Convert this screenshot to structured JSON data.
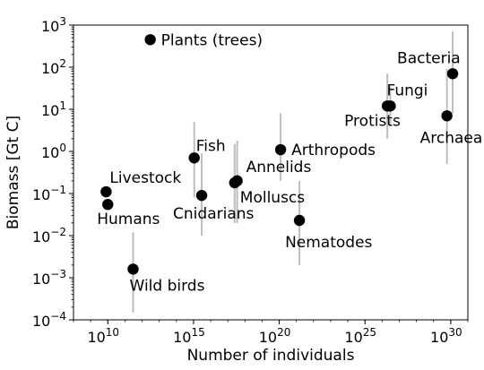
{
  "chart_data": {
    "type": "scatter",
    "title": "",
    "xlabel": "Number of individuals",
    "ylabel": "Biomass [Gt C]",
    "x_scale": "log",
    "y_scale": "log",
    "xlim": [
      100000000.0,
      1e+31
    ],
    "ylim": [
      0.0001,
      1000.0
    ],
    "grid": false,
    "x_ticks": [
      {
        "value": 10000000000.0,
        "base": "10",
        "exp": "10"
      },
      {
        "value": 1000000000000000.0,
        "base": "10",
        "exp": "15"
      },
      {
        "value": 1e+20,
        "base": "10",
        "exp": "20"
      },
      {
        "value": 1e+25,
        "base": "10",
        "exp": "25"
      },
      {
        "value": 1e+30,
        "base": "10",
        "exp": "30"
      }
    ],
    "y_ticks": [
      {
        "value": 0.0001,
        "base": "10",
        "exp": "−4"
      },
      {
        "value": 0.001,
        "base": "10",
        "exp": "−3"
      },
      {
        "value": 0.01,
        "base": "10",
        "exp": "−2"
      },
      {
        "value": 0.1,
        "base": "10",
        "exp": "−1"
      },
      {
        "value": 1,
        "base": "10",
        "exp": "0"
      },
      {
        "value": 10,
        "base": "10",
        "exp": "1"
      },
      {
        "value": 100,
        "base": "10",
        "exp": "2"
      },
      {
        "value": 1000,
        "base": "10",
        "exp": "3"
      }
    ],
    "marker_color": "#000000",
    "errorbar_color": "#bdbdbd",
    "points": [
      {
        "name": "Plants (trees)",
        "x": 3000000000000.0,
        "y": 450,
        "err": null,
        "label_pos": "right"
      },
      {
        "name": "Bacteria",
        "x": 1.3e+30,
        "y": 70,
        "err": [
          8,
          700
        ],
        "label_pos": "above-left"
      },
      {
        "name": "Fungi",
        "x": 3e+26,
        "y": 12,
        "err": [
          4,
          35
        ],
        "label_pos": "above"
      },
      {
        "name": "Protists",
        "x": 2e+26,
        "y": 12,
        "err": [
          2,
          70
        ],
        "label_pos": "below-left"
      },
      {
        "name": "Archaea",
        "x": 6e+29,
        "y": 7,
        "err": [
          0.5,
          90
        ],
        "label_pos": "below-right"
      },
      {
        "name": "Arthropods",
        "x": 1.2e+20,
        "y": 1.1,
        "err": [
          0.2,
          8
        ],
        "label_pos": "right"
      },
      {
        "name": "Fish",
        "x": 1100000000000000.0,
        "y": 0.7,
        "err": [
          0.08,
          5
        ],
        "label_pos": "above-right"
      },
      {
        "name": "Annelids",
        "x": 3.5e+17,
        "y": 0.2,
        "err": [
          0.02,
          1.8
        ],
        "label_pos": "above-right"
      },
      {
        "name": "Molluscs",
        "x": 2.5e+17,
        "y": 0.18,
        "err": [
          0.02,
          1.5
        ],
        "label_pos": "below-right"
      },
      {
        "name": "Cnidarians",
        "x": 3000000000000000.0,
        "y": 0.09,
        "err": [
          0.01,
          0.9
        ],
        "label_pos": "below"
      },
      {
        "name": "Nematodes",
        "x": 1.5e+21,
        "y": 0.023,
        "err": [
          0.002,
          0.2
        ],
        "label_pos": "below"
      },
      {
        "name": "Livestock",
        "x": 8000000000.0,
        "y": 0.11,
        "err": null,
        "label_pos": "above-right"
      },
      {
        "name": "Humans",
        "x": 10000000000.0,
        "y": 0.055,
        "err": null,
        "label_pos": "below"
      },
      {
        "name": "Wild birds",
        "x": 300000000000.0,
        "y": 0.0016,
        "err": [
          0.00015,
          0.012
        ],
        "label_pos": "below-right"
      }
    ]
  }
}
